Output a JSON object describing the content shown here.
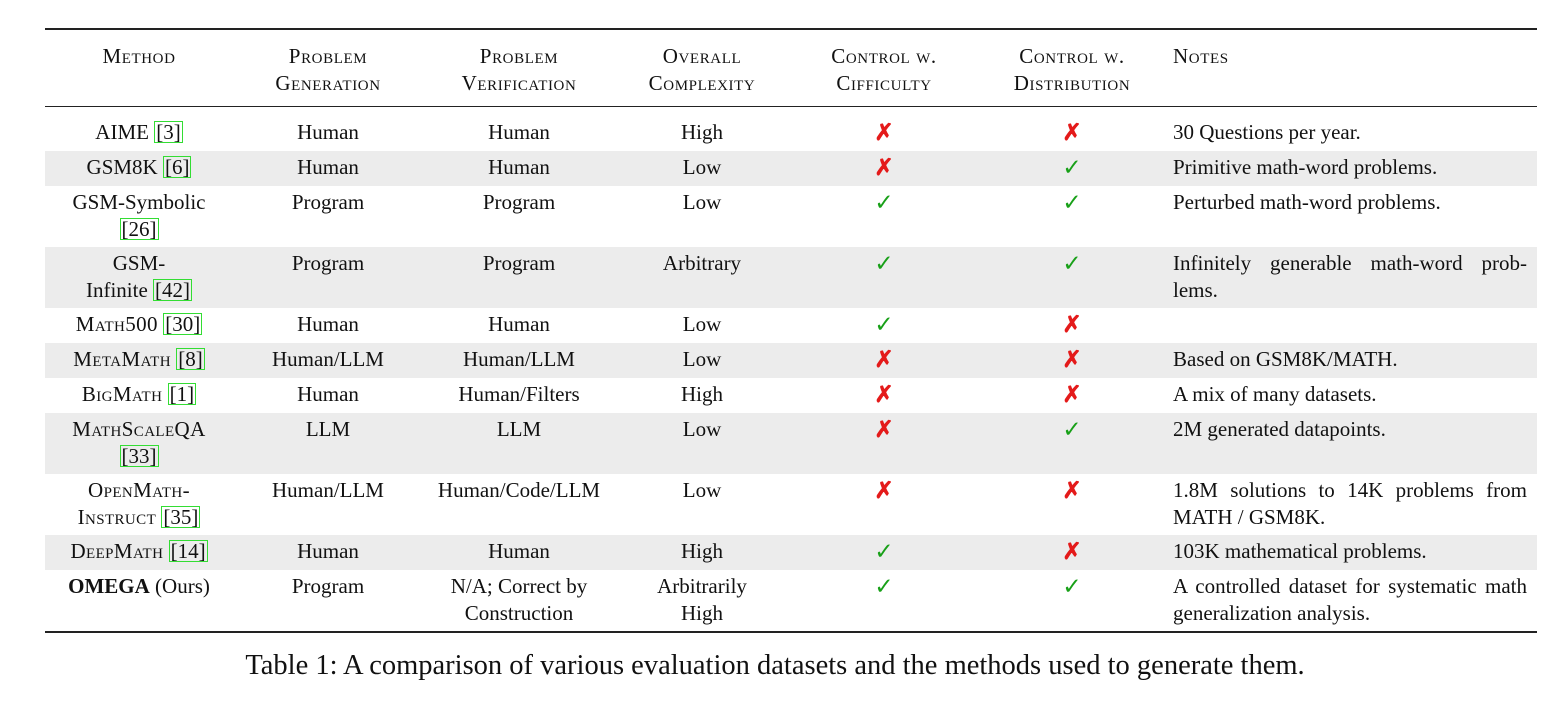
{
  "table": {
    "headers": {
      "method": "Method",
      "generation": [
        "Problem",
        "Generation"
      ],
      "verification": [
        "Problem",
        "Verification"
      ],
      "complexity": [
        "Overall",
        "Complexity"
      ],
      "control_difficulty": [
        "Control w.",
        "Cifficulty"
      ],
      "control_distribution": [
        "Control w.",
        "Distribution"
      ],
      "notes": "Notes"
    },
    "rows": [
      {
        "method_pre": "AIME",
        "method_suffix": "",
        "ref": "3",
        "ref_newline": false,
        "generation": "Human",
        "verification": "Human",
        "complexity": "High",
        "difficulty": "✗",
        "distribution": "✗",
        "notes": "30 Questions per year.",
        "shade": false,
        "smallcaps": false
      },
      {
        "method_pre": "GSM8K",
        "method_suffix": "",
        "ref": "6",
        "ref_newline": false,
        "generation": "Human",
        "verification": "Human",
        "complexity": "Low",
        "difficulty": "✗",
        "distribution": "✓",
        "notes": "Primitive math-word problems.",
        "shade": true,
        "smallcaps": false
      },
      {
        "method_pre": "GSM-Symbolic",
        "method_suffix": "",
        "ref": "26",
        "ref_newline": true,
        "generation": "Program",
        "verification": "Program",
        "complexity": "Low",
        "difficulty": "✓",
        "distribution": "✓",
        "notes": "Perturbed math-word problems.",
        "shade": false,
        "smallcaps": false
      },
      {
        "method_pre": "GSM-",
        "method_post": "Infinite",
        "method_suffix": "",
        "ref": "42",
        "ref_newline": false,
        "generation": "Program",
        "verification": "Program",
        "complexity": "Arbitrary",
        "difficulty": "✓",
        "distribution": "✓",
        "notes": "Infinitely generable math-word prob- lems.",
        "shade": true,
        "smallcaps": false
      },
      {
        "method_pre": "Math500",
        "method_suffix": "",
        "ref": "30",
        "ref_newline": false,
        "generation": "Human",
        "verification": "Human",
        "complexity": "Low",
        "difficulty": "✓",
        "distribution": "✗",
        "notes": "",
        "shade": false,
        "smallcaps": true
      },
      {
        "method_pre": "MetaMath",
        "method_suffix": "",
        "ref": "8",
        "ref_newline": false,
        "generation": "Human/LLM",
        "verification": "Human/LLM",
        "complexity": "Low",
        "difficulty": "✗",
        "distribution": "✗",
        "notes": "Based on GSM8K/MATH.",
        "shade": true,
        "smallcaps": true
      },
      {
        "method_pre": "BigMath",
        "method_suffix": "",
        "ref": "1",
        "ref_newline": false,
        "generation": "Human",
        "verification": "Human/Filters",
        "complexity": "High",
        "difficulty": "✗",
        "distribution": "✗",
        "notes": "A mix of many datasets.",
        "shade": false,
        "smallcaps": true
      },
      {
        "method_pre": "MathScaleQA",
        "method_suffix": "",
        "ref": "33",
        "ref_newline": true,
        "generation": "LLM",
        "verification": "LLM",
        "complexity": "Low",
        "difficulty": "✗",
        "distribution": "✓",
        "notes": "2M generated datapoints.",
        "shade": true,
        "smallcaps": true
      },
      {
        "method_pre": "OpenMath-",
        "method_post": "Instruct",
        "method_suffix": "",
        "ref": "35",
        "ref_newline": false,
        "generation": "Human/LLM",
        "verification": "Human/Code/LLM",
        "complexity": "Low",
        "difficulty": "✗",
        "distribution": "✗",
        "notes": "1.8M solutions to 14K problems from MATH / GSM8K.",
        "shade": false,
        "smallcaps": true
      },
      {
        "method_pre": "DeepMath",
        "method_suffix": "",
        "ref": "14",
        "ref_newline": false,
        "generation": "Human",
        "verification": "Human",
        "complexity": "High",
        "difficulty": "✓",
        "distribution": "✗",
        "notes": "103K mathematical problems.",
        "shade": true,
        "smallcaps": true
      },
      {
        "method_pre": "OMEGA",
        "method_suffix": "(Ours)",
        "ref": "",
        "ref_newline": false,
        "generation": "Program",
        "verification_lines": [
          "N/A; Correct by",
          "Construction"
        ],
        "complexity_lines": [
          "Arbitrarily",
          "High"
        ],
        "difficulty": "✓",
        "distribution": "✓",
        "notes": "A controlled dataset for systematic math generalization analysis.",
        "shade": false,
        "smallcaps": false,
        "bold": true
      }
    ]
  },
  "caption": "Table 1: A comparison of various evaluation datasets and the methods used to generate them.",
  "colors": {
    "check": "#18a018",
    "cross": "#e41a1a",
    "ref_box": "#33dd33",
    "shade": "#ececec"
  }
}
